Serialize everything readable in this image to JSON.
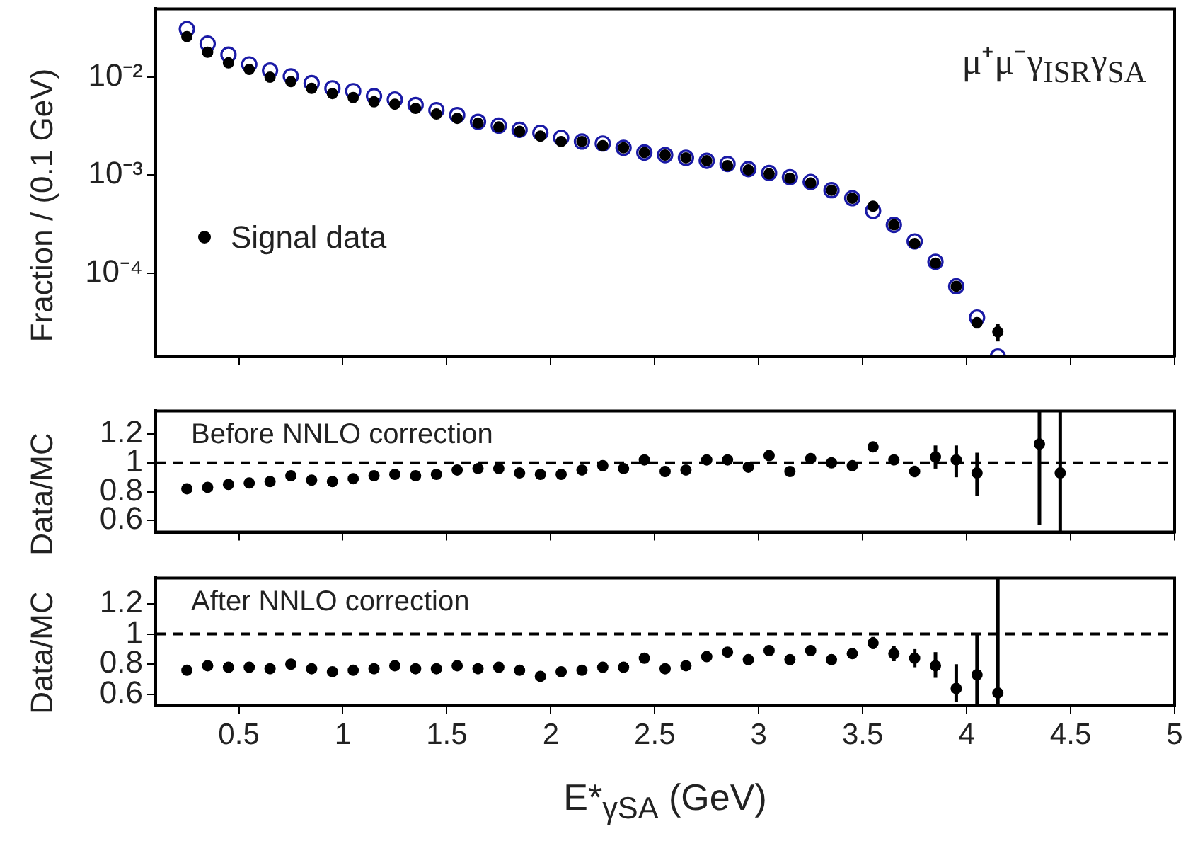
{
  "chart_data": [
    {
      "type": "scatter",
      "ylabel": "Fraction / (0.1 GeV)",
      "annotations": [
        "μ⁺μ⁻γ$_{ISR}$γ$_{SA}$"
      ],
      "legend": "left",
      "tick_labels": "y",
      "marker": "circle",
      "log": true,
      "x": [
        0.25,
        0.35,
        0.45,
        0.55,
        0.65,
        0.75,
        0.85,
        0.95,
        1.05,
        1.15,
        1.25,
        1.35,
        1.45,
        1.55,
        1.65,
        1.75,
        1.85,
        1.95,
        2.05,
        2.15,
        2.25,
        2.35,
        2.45,
        2.55,
        2.65,
        2.75,
        2.85,
        2.95,
        3.05,
        3.15,
        3.25,
        3.35,
        3.45,
        3.55,
        3.65,
        3.75,
        3.85,
        3.95,
        4.05,
        4.15
      ],
      "series": [
        {
          "name": "Signal data",
          "color": "#000000",
          "values": [
            0.026,
            0.018,
            0.014,
            0.012,
            0.01,
            0.009,
            0.0077,
            0.0068,
            0.0062,
            0.0056,
            0.0053,
            0.0048,
            0.0042,
            0.0038,
            0.0034,
            0.0031,
            0.0028,
            0.0025,
            0.0022,
            0.0022,
            0.002,
            0.0019,
            0.0017,
            0.0016,
            0.0015,
            0.0014,
            0.00125,
            0.00113,
            0.00103,
            0.00093,
            0.00083,
            0.0007,
            0.00058,
            0.00048,
            0.00031,
            0.0002,
            0.000126,
            7.3e-05,
            3.1e-05,
            2.5e-05
          ],
          "errors": [
            null,
            null,
            null,
            null,
            null,
            null,
            null,
            null,
            null,
            null,
            null,
            null,
            null,
            null,
            null,
            null,
            null,
            null,
            null,
            null,
            null,
            null,
            null,
            null,
            null,
            null,
            null,
            null,
            null,
            null,
            null,
            null,
            null,
            null,
            null,
            null,
            null,
            null,
            4e-06,
            5e-06
          ]
        },
        {
          "color": "#1a1aa6",
          "values": [
            0.031,
            0.022,
            0.017,
            0.0135,
            0.0117,
            0.0102,
            0.0087,
            0.0077,
            0.0072,
            0.0064,
            0.0059,
            0.0052,
            0.0046,
            0.0041,
            0.0035,
            0.0032,
            0.0029,
            0.0027,
            0.0024,
            0.0022,
            0.0021,
            0.0019,
            0.0017,
            0.0016,
            0.0015,
            0.0014,
            0.0013,
            0.00115,
            0.00105,
            0.00095,
            0.00085,
            0.0007,
            0.00058,
            0.00043,
            0.00031,
            0.00021,
            0.00013,
            7.3e-05,
            3.5e-05,
            1.4e-05
          ]
        }
      ],
      "xlim": [
        0.1,
        5
      ],
      "xticks": [
        0.5,
        1,
        1.5,
        2,
        2.5,
        3,
        3.5,
        4,
        4.5,
        5
      ],
      "ylim": [
        1.4e-05,
        0.05
      ],
      "yticks": [
        {
          "value": 0.01,
          "label": "10⁻²"
        },
        {
          "value": 0.001,
          "label": "10⁻³"
        },
        {
          "value": 0.0001,
          "label": "10⁻⁴"
        }
      ]
    },
    {
      "type": "scatter",
      "ylabel": "Data/MC",
      "annotations": [
        "Before NNLO correction"
      ],
      "tick_labels": "y",
      "marker": "circle",
      "x": [
        0.25,
        0.35,
        0.45,
        0.55,
        0.65,
        0.75,
        0.85,
        0.95,
        1.05,
        1.15,
        1.25,
        1.35,
        1.45,
        1.55,
        1.65,
        1.75,
        1.85,
        1.95,
        2.05,
        2.15,
        2.25,
        2.35,
        2.45,
        2.55,
        2.65,
        2.75,
        2.85,
        2.95,
        3.05,
        3.15,
        3.25,
        3.35,
        3.45,
        3.55,
        3.65,
        3.75,
        3.85,
        3.95,
        4.05,
        4.15,
        4.25,
        4.35,
        4.45
      ],
      "series": [
        {
          "color": "#000000",
          "values": [
            0.82,
            0.83,
            0.85,
            0.86,
            0.87,
            0.91,
            0.88,
            0.87,
            0.89,
            0.91,
            0.92,
            0.91,
            0.92,
            0.95,
            0.96,
            0.96,
            0.93,
            0.92,
            0.92,
            0.95,
            0.98,
            0.96,
            1.02,
            0.94,
            0.95,
            1.02,
            1.02,
            0.97,
            1.05,
            0.94,
            1.03,
            1.0,
            0.98,
            1.11,
            1.02,
            0.94,
            1.04,
            1.02,
            0.93,
            null,
            null,
            1.13,
            0.93
          ],
          "errors": [
            null,
            null,
            null,
            null,
            null,
            null,
            null,
            null,
            null,
            null,
            null,
            null,
            null,
            null,
            null,
            null,
            null,
            null,
            null,
            null,
            null,
            null,
            null,
            null,
            null,
            null,
            null,
            null,
            0.02,
            0.02,
            0.02,
            0.02,
            0.02,
            0.03,
            0.03,
            0.04,
            [
              0.96,
              1.12
            ],
            [
              0.9,
              1.12
            ],
            [
              0.77,
              1.07
            ],
            null,
            null,
            [
              0.57,
              1.36
            ],
            [
              0.52,
              1.36
            ]
          ]
        }
      ],
      "ref_lines": [
        {
          "axis": "y",
          "value": 1,
          "line_style": "dashed"
        }
      ],
      "xlim": [
        0.1,
        5
      ],
      "xticks": [
        0.5,
        1,
        1.5,
        2,
        2.5,
        3,
        3.5,
        4,
        4.5,
        5
      ],
      "ylim": [
        0.52,
        1.36
      ],
      "yticks": [
        0.6,
        0.8,
        1,
        1.2
      ]
    },
    {
      "type": "scatter",
      "ylabel": "Data/MC",
      "xlabel": "E*$_{γSA}$ (GeV)",
      "annotations": [
        "After NNLO correction"
      ],
      "marker": "circle",
      "x": [
        0.25,
        0.35,
        0.45,
        0.55,
        0.65,
        0.75,
        0.85,
        0.95,
        1.05,
        1.15,
        1.25,
        1.35,
        1.45,
        1.55,
        1.65,
        1.75,
        1.85,
        1.95,
        2.05,
        2.15,
        2.25,
        2.35,
        2.45,
        2.55,
        2.65,
        2.75,
        2.85,
        2.95,
        3.05,
        3.15,
        3.25,
        3.35,
        3.45,
        3.55,
        3.65,
        3.75,
        3.85,
        3.95,
        4.05,
        4.15
      ],
      "series": [
        {
          "color": "#000000",
          "values": [
            0.76,
            0.79,
            0.78,
            0.78,
            0.77,
            0.8,
            0.77,
            0.75,
            0.76,
            0.77,
            0.79,
            0.77,
            0.77,
            0.79,
            0.77,
            0.78,
            0.76,
            0.72,
            0.75,
            0.76,
            0.78,
            0.78,
            0.84,
            0.77,
            0.79,
            0.85,
            0.88,
            0.83,
            0.89,
            0.83,
            0.89,
            0.83,
            0.87,
            0.94,
            0.87,
            0.84,
            0.79,
            0.64,
            0.73,
            0.61
          ],
          "errors": [
            null,
            null,
            null,
            null,
            null,
            null,
            null,
            null,
            null,
            null,
            null,
            null,
            null,
            null,
            null,
            null,
            null,
            null,
            null,
            null,
            null,
            null,
            null,
            null,
            null,
            null,
            null,
            null,
            null,
            null,
            0.02,
            0.02,
            0.02,
            0.04,
            0.05,
            0.06,
            [
              0.71,
              0.88
            ],
            [
              0.55,
              0.8
            ],
            [
              0.53,
              1.0
            ],
            [
              0.53,
              1.37
            ]
          ]
        }
      ],
      "ref_lines": [
        {
          "axis": "y",
          "value": 1,
          "line_style": "dashed"
        }
      ],
      "xlim": [
        0.1,
        5
      ],
      "xticks": [
        0.5,
        1,
        1.5,
        2,
        2.5,
        3,
        3.5,
        4,
        4.5,
        5
      ],
      "ylim": [
        0.53,
        1.37
      ],
      "yticks": [
        0.6,
        0.8,
        1,
        1.2
      ]
    }
  ]
}
